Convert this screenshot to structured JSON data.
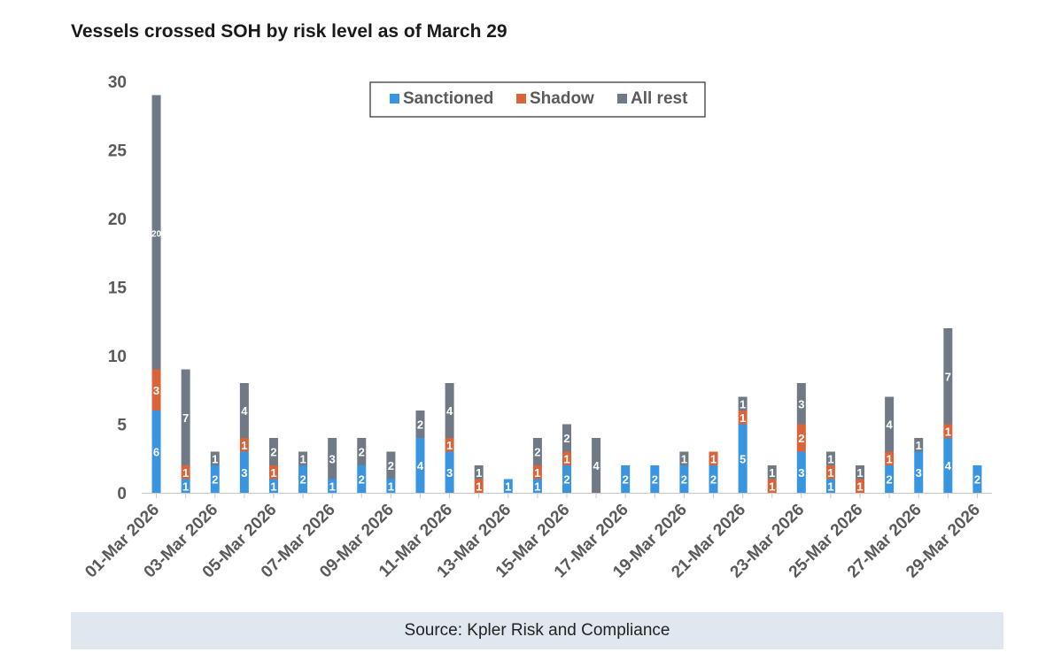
{
  "title": "Vessels crossed SOH by risk level as of March 29",
  "source": "Source: Kpler Risk and Compliance",
  "colors": {
    "sanctioned": "#3a95e0",
    "shadow": "#d9643a",
    "all_rest": "#6f7a86"
  },
  "chart_data": {
    "type": "bar",
    "stacked": true,
    "title": "Vessels crossed SOH by risk level as of March 29",
    "xlabel": "",
    "ylabel": "",
    "ylim": [
      0,
      30
    ],
    "yticks": [
      0,
      5,
      10,
      15,
      20,
      25,
      30
    ],
    "legend_position": "top-center",
    "categories": [
      "01-Mar 2026",
      "02-Mar 2026",
      "03-Mar 2026",
      "04-Mar 2026",
      "05-Mar 2026",
      "06-Mar 2026",
      "07-Mar 2026",
      "08-Mar 2026",
      "09-Mar 2026",
      "10-Mar 2026",
      "11-Mar 2026",
      "12-Mar 2026",
      "13-Mar 2026",
      "14-Mar 2026",
      "15-Mar 2026",
      "16-Mar 2026",
      "17-Mar 2026",
      "18-Mar 2026",
      "19-Mar 2026",
      "20-Mar 2026",
      "21-Mar 2026",
      "22-Mar 2026",
      "23-Mar 2026",
      "24-Mar 2026",
      "25-Mar 2026",
      "26-Mar 2026",
      "27-Mar 2026",
      "28-Mar 2026",
      "29-Mar 2026"
    ],
    "shown_tick_labels": [
      "01-Mar 2026",
      "03-Mar 2026",
      "05-Mar 2026",
      "07-Mar 2026",
      "09-Mar 2026",
      "11-Mar 2026",
      "13-Mar 2026",
      "15-Mar 2026",
      "17-Mar 2026",
      "19-Mar 2026",
      "21-Mar 2026",
      "23-Mar 2026",
      "25-Mar 2026",
      "27-Mar 2026",
      "29-Mar 2026"
    ],
    "series": [
      {
        "name": "Sanctioned",
        "key": "sanctioned",
        "values": [
          6,
          1,
          2,
          3,
          1,
          2,
          1,
          2,
          1,
          4,
          3,
          0,
          1,
          1,
          2,
          0,
          2,
          2,
          2,
          2,
          5,
          0,
          3,
          1,
          0,
          2,
          3,
          4,
          2
        ]
      },
      {
        "name": "Shadow",
        "key": "shadow",
        "values": [
          3,
          1,
          0,
          1,
          1,
          0,
          0,
          0,
          0,
          0,
          1,
          1,
          0,
          1,
          1,
          0,
          0,
          0,
          0,
          1,
          1,
          1,
          2,
          1,
          1,
          1,
          0,
          1,
          0
        ]
      },
      {
        "name": "All rest",
        "key": "all_rest",
        "values": [
          20,
          7,
          1,
          4,
          2,
          1,
          3,
          2,
          2,
          2,
          4,
          1,
          0,
          2,
          2,
          4,
          0,
          0,
          1,
          0,
          1,
          1,
          3,
          1,
          1,
          4,
          1,
          7,
          0
        ]
      }
    ]
  }
}
